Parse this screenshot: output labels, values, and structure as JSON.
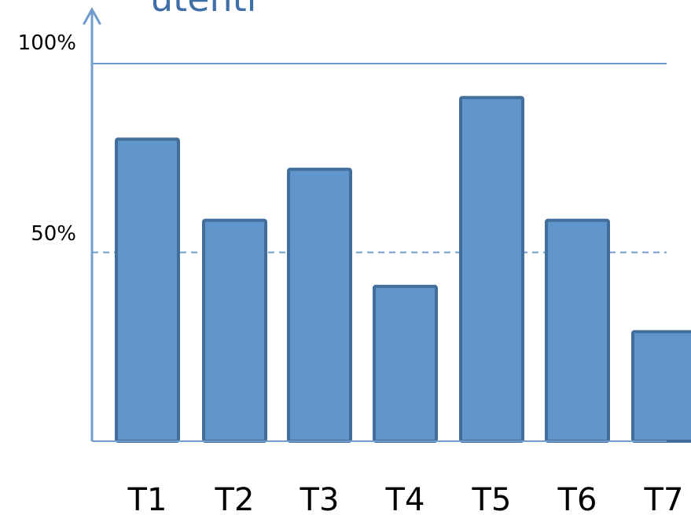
{
  "chart_data": {
    "type": "bar",
    "title": "utenti",
    "xlabel": "",
    "ylabel": "",
    "ylim": [
      0,
      100
    ],
    "y_tick_labels": [
      {
        "value": 100,
        "label": "100%"
      },
      {
        "value": 50,
        "label": "50%"
      }
    ],
    "reference_lines": [
      {
        "value": 100,
        "style": "solid"
      },
      {
        "value": 50,
        "style": "dashed"
      }
    ],
    "categories": [
      "T1",
      "T2",
      "T3",
      "T4",
      "T5",
      "T6",
      "T7"
    ],
    "values": [
      80,
      58.5,
      72,
      41,
      91,
      58.5,
      29
    ],
    "colors": {
      "bar_fill": "#6096cb",
      "bar_stroke": "#426e9b",
      "axis": "#6f9ccd",
      "title": "#3e6fa6"
    },
    "grid": false,
    "legend": "none"
  }
}
